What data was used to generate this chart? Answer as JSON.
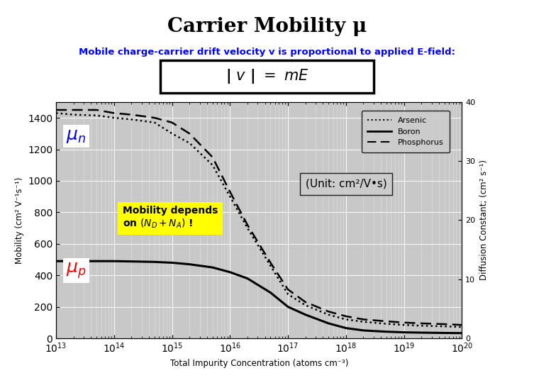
{
  "title": "Carrier Mobility μ",
  "subtitle_parts": [
    {
      "text": "Mobile charge-carrier drift velocity v is proportional to applied ",
      "italic": false
    },
    {
      "text": "E",
      "italic": true
    },
    {
      "text": "-field:",
      "italic": false
    }
  ],
  "bg_color": "#ffffff",
  "plot_bg_color": "#c8c8c8",
  "ylabel_left": "Mobility (cm² V⁻¹s⁻¹)",
  "ylabel_right": "Diffusion Constant; (cm² s⁻¹)",
  "xlabel": "Total Impurity Concentration (atoms cm⁻³)",
  "ylim_left": [
    0,
    1500
  ],
  "ylim_right": [
    0,
    40
  ],
  "xlim": [
    10000000000000.0,
    1e+20
  ],
  "yticks_left": [
    0,
    200,
    400,
    600,
    800,
    1000,
    1200,
    1400
  ],
  "yticks_right_vals": [
    0,
    10,
    20,
    30,
    40
  ],
  "yticks_right_labels": [
    "0",
    "10",
    "20",
    "30",
    "40"
  ],
  "arsenic_x": [
    10000000000000.0,
    20000000000000.0,
    50000000000000.0,
    100000000000000.0,
    200000000000000.0,
    500000000000000.0,
    1000000000000000.0,
    2000000000000000.0,
    5000000000000000.0,
    1e+16,
    2e+16,
    5e+16,
    1e+17,
    2e+17,
    5e+17,
    1e+18,
    2e+18,
    5e+18,
    1e+19,
    2e+19,
    5e+19,
    1e+20
  ],
  "arsenic_y": [
    1430,
    1420,
    1415,
    1400,
    1390,
    1370,
    1300,
    1240,
    1100,
    900,
    700,
    460,
    280,
    210,
    150,
    120,
    105,
    92,
    85,
    80,
    76,
    72
  ],
  "boron_x": [
    10000000000000.0,
    20000000000000.0,
    50000000000000.0,
    100000000000000.0,
    200000000000000.0,
    500000000000000.0,
    1000000000000000.0,
    2000000000000000.0,
    5000000000000000.0,
    1e+16,
    2e+16,
    5e+16,
    1e+17,
    2e+17,
    5e+17,
    1e+18,
    2e+18,
    5e+18,
    1e+19,
    2e+19,
    5e+19,
    1e+20
  ],
  "boron_y": [
    490,
    490,
    490,
    490,
    488,
    485,
    480,
    470,
    450,
    420,
    380,
    290,
    200,
    150,
    95,
    65,
    50,
    42,
    38,
    36,
    34,
    33
  ],
  "phosphorus_x": [
    10000000000000.0,
    20000000000000.0,
    50000000000000.0,
    100000000000000.0,
    200000000000000.0,
    500000000000000.0,
    1000000000000000.0,
    2000000000000000.0,
    5000000000000000.0,
    1e+16,
    2e+16,
    5e+16,
    1e+17,
    2e+17,
    5e+17,
    1e+18,
    2e+18,
    5e+18,
    1e+19,
    2e+19,
    5e+19,
    1e+20
  ],
  "phosphorus_y": [
    1450,
    1450,
    1450,
    1430,
    1420,
    1400,
    1370,
    1300,
    1150,
    930,
    720,
    480,
    310,
    230,
    170,
    140,
    120,
    108,
    100,
    95,
    90,
    85
  ]
}
